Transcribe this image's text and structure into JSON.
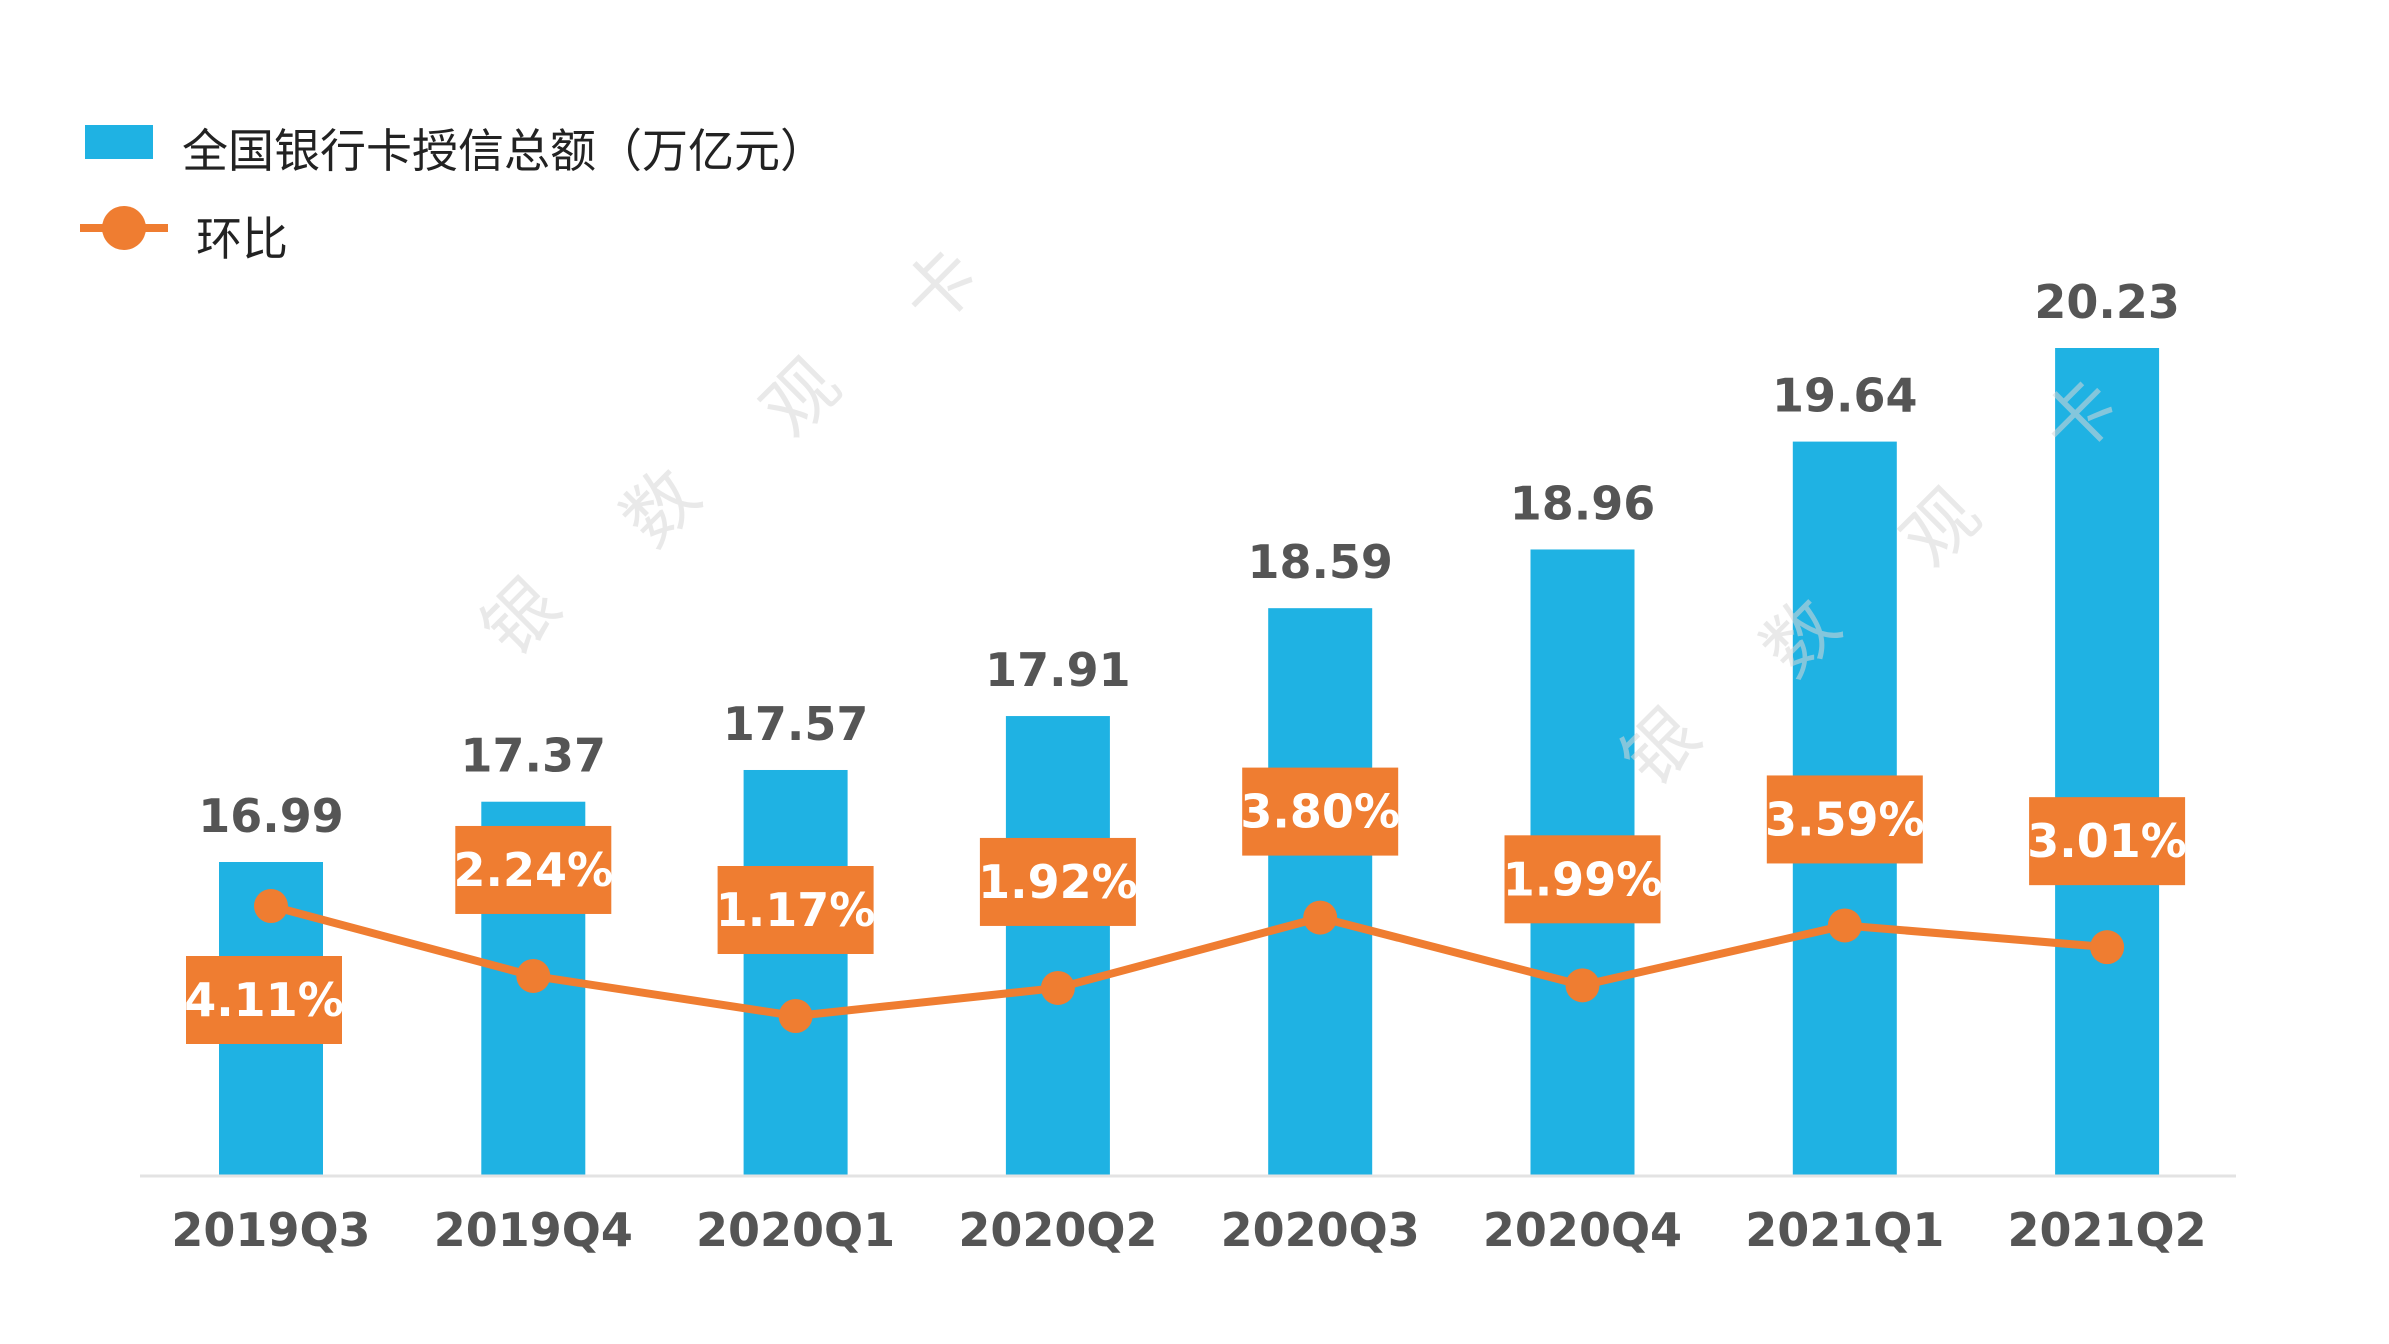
{
  "chart_data": {
    "type": "bar",
    "categories": [
      "2019Q3",
      "2019Q4",
      "2020Q1",
      "2020Q2",
      "2020Q3",
      "2020Q4",
      "2021Q1",
      "2021Q2"
    ],
    "series": [
      {
        "name": "全国银行卡授信总额（万亿元）",
        "kind": "bar",
        "color": "#1fb2e3",
        "values": [
          16.99,
          17.37,
          17.57,
          17.91,
          18.59,
          18.96,
          19.64,
          20.23
        ],
        "labels": [
          "16.99",
          "17.37",
          "17.57",
          "17.91",
          "18.59",
          "18.96",
          "19.64",
          "20.23"
        ]
      },
      {
        "name": "环比",
        "kind": "line",
        "color": "#ef7d31",
        "values": [
          4.11,
          2.24,
          1.17,
          1.92,
          3.8,
          1.99,
          3.59,
          3.01
        ],
        "labels": [
          "4.11%",
          "2.24%",
          "1.17%",
          "1.92%",
          "3.80%",
          "1.99%",
          "3.59%",
          "3.01%"
        ]
      }
    ],
    "title": "",
    "xlabel": "",
    "ylabel": "",
    "grid": false,
    "legend_placement": "top-left"
  },
  "legend": {
    "bar_label": "全国银行卡授信总额（万亿元）",
    "line_label": "环比"
  },
  "watermark": {
    "chars": [
      "银",
      "数",
      "观",
      "卡"
    ]
  }
}
